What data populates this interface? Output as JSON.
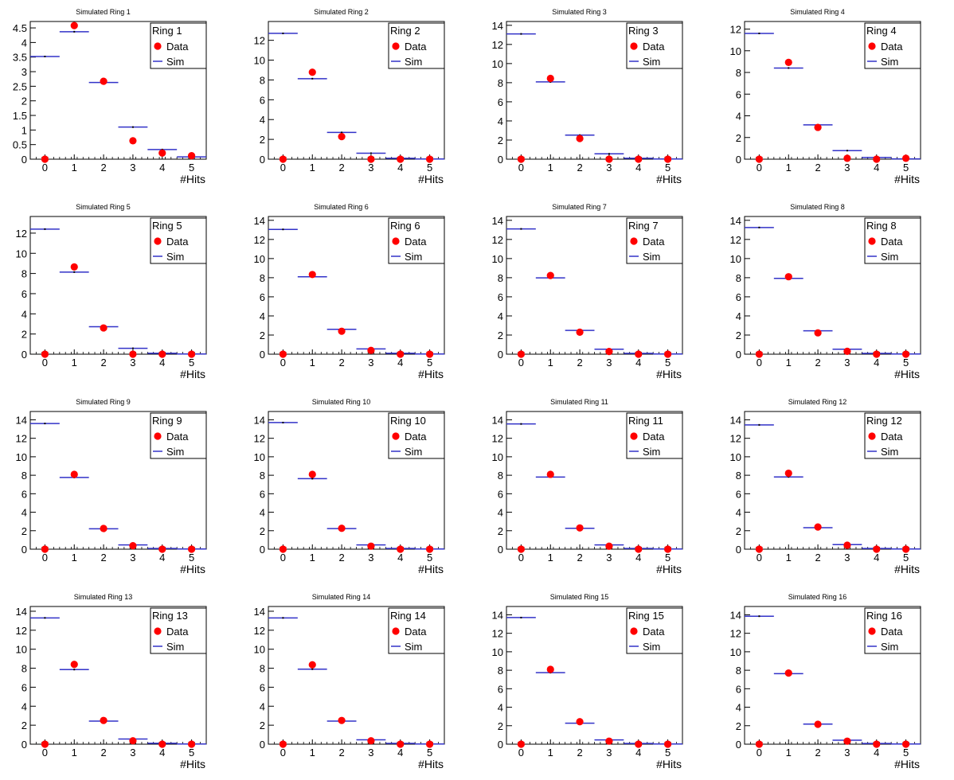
{
  "colors": {
    "data": "#ff0000",
    "sim": "#3232c8",
    "frame": "#000000",
    "background": "#ffffff"
  },
  "chart_data": [
    {
      "type": "scatter",
      "title": "Simulated Ring 1",
      "xlabel": "#Hits",
      "ylabel": "",
      "xlim": [
        -0.5,
        5.5
      ],
      "ylim": [
        0,
        4.72
      ],
      "yticks": [
        0,
        0.5,
        1,
        1.5,
        2,
        2.5,
        3,
        3.5,
        4,
        4.5
      ],
      "legend": {
        "title": "Ring 1",
        "position": "top-right"
      },
      "series": [
        {
          "name": "Data",
          "x": [
            0,
            1,
            2,
            3,
            4,
            5
          ],
          "values": [
            0,
            4.58,
            2.67,
            0.63,
            0.21,
            0.12
          ]
        },
        {
          "name": "Sim",
          "x": [
            0,
            1,
            2,
            3,
            4,
            5
          ],
          "values": [
            3.52,
            4.37,
            2.63,
            1.1,
            0.33,
            0.08
          ]
        }
      ]
    },
    {
      "type": "scatter",
      "title": "Simulated Ring 2",
      "xlabel": "#Hits",
      "ylabel": "",
      "xlim": [
        -0.5,
        5.5
      ],
      "ylim": [
        0,
        13.9
      ],
      "yticks": [
        0,
        2,
        4,
        6,
        8,
        10,
        12
      ],
      "legend": {
        "title": "Ring 2",
        "position": "top-right"
      },
      "series": [
        {
          "name": "Data",
          "x": [
            0,
            1,
            2,
            3,
            4,
            5
          ],
          "values": [
            0,
            8.78,
            2.28,
            0,
            0,
            0
          ]
        },
        {
          "name": "Sim",
          "x": [
            0,
            1,
            2,
            3,
            4,
            5
          ],
          "values": [
            12.7,
            8.13,
            2.7,
            0.6,
            0.09,
            0.02
          ]
        }
      ]
    },
    {
      "type": "scatter",
      "title": "Simulated Ring 3",
      "xlabel": "#Hits",
      "ylabel": "",
      "xlim": [
        -0.5,
        5.5
      ],
      "ylim": [
        0,
        14.4
      ],
      "yticks": [
        0,
        2,
        4,
        6,
        8,
        10,
        12,
        14
      ],
      "legend": {
        "title": "Ring 3",
        "position": "top-right"
      },
      "series": [
        {
          "name": "Data",
          "x": [
            0,
            1,
            2,
            3,
            4,
            5
          ],
          "values": [
            0,
            8.45,
            2.16,
            0,
            0,
            0
          ]
        },
        {
          "name": "Sim",
          "x": [
            0,
            1,
            2,
            3,
            4,
            5
          ],
          "values": [
            13.1,
            8.08,
            2.52,
            0.56,
            0.09,
            0.02
          ]
        }
      ]
    },
    {
      "type": "scatter",
      "title": "Simulated Ring 4",
      "xlabel": "#Hits",
      "ylabel": "",
      "xlim": [
        -0.5,
        5.5
      ],
      "ylim": [
        0,
        12.7
      ],
      "yticks": [
        0,
        2,
        4,
        6,
        8,
        10,
        12
      ],
      "legend": {
        "title": "Ring 4",
        "position": "top-right"
      },
      "series": [
        {
          "name": "Data",
          "x": [
            0,
            1,
            2,
            3,
            4,
            5
          ],
          "values": [
            0,
            8.93,
            2.93,
            0.08,
            0,
            0.08
          ]
        },
        {
          "name": "Sim",
          "x": [
            0,
            1,
            2,
            3,
            4,
            5
          ],
          "values": [
            11.6,
            8.41,
            3.17,
            0.79,
            0.16,
            0.03
          ]
        }
      ]
    },
    {
      "type": "scatter",
      "title": "Simulated Ring 5",
      "xlabel": "#Hits",
      "ylabel": "",
      "xlim": [
        -0.5,
        5.5
      ],
      "ylim": [
        0,
        13.65
      ],
      "yticks": [
        0,
        2,
        4,
        6,
        8,
        10,
        12
      ],
      "legend": {
        "title": "Ring 5",
        "position": "top-right"
      },
      "series": [
        {
          "name": "Data",
          "x": [
            0,
            1,
            2,
            3,
            4,
            5
          ],
          "values": [
            0,
            8.65,
            2.6,
            0,
            0,
            0
          ]
        },
        {
          "name": "Sim",
          "x": [
            0,
            1,
            2,
            3,
            4,
            5
          ],
          "values": [
            12.4,
            8.14,
            2.72,
            0.58,
            0.09,
            0.02
          ]
        }
      ]
    },
    {
      "type": "scatter",
      "title": "Simulated Ring 6",
      "xlabel": "#Hits",
      "ylabel": "",
      "xlim": [
        -0.5,
        5.5
      ],
      "ylim": [
        0,
        14.4
      ],
      "yticks": [
        0,
        2,
        4,
        6,
        8,
        10,
        12,
        14
      ],
      "legend": {
        "title": "Ring 6",
        "position": "top-right"
      },
      "series": [
        {
          "name": "Data",
          "x": [
            0,
            1,
            2,
            3,
            4,
            5
          ],
          "values": [
            0,
            8.33,
            2.4,
            0.4,
            0,
            0
          ]
        },
        {
          "name": "Sim",
          "x": [
            0,
            1,
            2,
            3,
            4,
            5
          ],
          "values": [
            13.05,
            8.1,
            2.6,
            0.55,
            0.09,
            0.02
          ]
        }
      ]
    },
    {
      "type": "scatter",
      "title": "Simulated Ring 7",
      "xlabel": "#Hits",
      "ylabel": "",
      "xlim": [
        -0.5,
        5.5
      ],
      "ylim": [
        0,
        14.4
      ],
      "yticks": [
        0,
        2,
        4,
        6,
        8,
        10,
        12,
        14
      ],
      "legend": {
        "title": "Ring 7",
        "position": "top-right"
      },
      "series": [
        {
          "name": "Data",
          "x": [
            0,
            1,
            2,
            3,
            4,
            5
          ],
          "values": [
            0,
            8.23,
            2.3,
            0.28,
            0,
            0
          ]
        },
        {
          "name": "Sim",
          "x": [
            0,
            1,
            2,
            3,
            4,
            5
          ],
          "values": [
            13.1,
            7.98,
            2.49,
            0.52,
            0.08,
            0.02
          ]
        }
      ]
    },
    {
      "type": "scatter",
      "title": "Simulated Ring 8",
      "xlabel": "#Hits",
      "ylabel": "",
      "xlim": [
        -0.5,
        5.5
      ],
      "ylim": [
        0,
        14.4
      ],
      "yticks": [
        0,
        2,
        4,
        6,
        8,
        10,
        12,
        14
      ],
      "legend": {
        "title": "Ring 8",
        "position": "top-right"
      },
      "series": [
        {
          "name": "Data",
          "x": [
            0,
            1,
            2,
            3,
            4,
            5
          ],
          "values": [
            0,
            8.1,
            2.23,
            0.3,
            0,
            0
          ]
        },
        {
          "name": "Sim",
          "x": [
            0,
            1,
            2,
            3,
            4,
            5
          ],
          "values": [
            13.25,
            7.93,
            2.45,
            0.52,
            0.08,
            0.02
          ]
        }
      ]
    },
    {
      "type": "scatter",
      "title": "Simulated Ring 9",
      "xlabel": "#Hits",
      "ylabel": "",
      "xlim": [
        -0.5,
        5.5
      ],
      "ylim": [
        0,
        14.9
      ],
      "yticks": [
        0,
        2,
        4,
        6,
        8,
        10,
        12,
        14
      ],
      "legend": {
        "title": "Ring 9",
        "position": "top-right"
      },
      "series": [
        {
          "name": "Data",
          "x": [
            0,
            1,
            2,
            3,
            4,
            5
          ],
          "values": [
            0,
            8.1,
            2.24,
            0.38,
            0,
            0
          ]
        },
        {
          "name": "Sim",
          "x": [
            0,
            1,
            2,
            3,
            4,
            5
          ],
          "values": [
            13.6,
            7.76,
            2.21,
            0.46,
            0.08,
            0.02
          ]
        }
      ]
    },
    {
      "type": "scatter",
      "title": "Simulated Ring 10",
      "xlabel": "#Hits",
      "ylabel": "",
      "xlim": [
        -0.5,
        5.5
      ],
      "ylim": [
        0,
        14.9
      ],
      "yticks": [
        0,
        2,
        4,
        6,
        8,
        10,
        12,
        14
      ],
      "legend": {
        "title": "Ring 10",
        "position": "top-right"
      },
      "series": [
        {
          "name": "Data",
          "x": [
            0,
            1,
            2,
            3,
            4,
            5
          ],
          "values": [
            0,
            8.1,
            2.26,
            0.33,
            0,
            0
          ]
        },
        {
          "name": "Sim",
          "x": [
            0,
            1,
            2,
            3,
            4,
            5
          ],
          "values": [
            13.7,
            7.63,
            2.23,
            0.46,
            0.08,
            0.02
          ]
        }
      ]
    },
    {
      "type": "scatter",
      "title": "Simulated Ring 11",
      "xlabel": "#Hits",
      "ylabel": "",
      "xlim": [
        -0.5,
        5.5
      ],
      "ylim": [
        0,
        14.9
      ],
      "yticks": [
        0,
        2,
        4,
        6,
        8,
        10,
        12,
        14
      ],
      "legend": {
        "title": "Ring 11",
        "position": "top-right"
      },
      "series": [
        {
          "name": "Data",
          "x": [
            0,
            1,
            2,
            3,
            4,
            5
          ],
          "values": [
            0,
            8.1,
            2.3,
            0.32,
            0,
            0
          ]
        },
        {
          "name": "Sim",
          "x": [
            0,
            1,
            2,
            3,
            4,
            5
          ],
          "values": [
            13.55,
            7.8,
            2.26,
            0.46,
            0.08,
            0.02
          ]
        }
      ]
    },
    {
      "type": "scatter",
      "title": "Simulated Ring 12",
      "xlabel": "#Hits",
      "ylabel": "",
      "xlim": [
        -0.5,
        5.5
      ],
      "ylim": [
        0,
        14.9
      ],
      "yticks": [
        0,
        2,
        4,
        6,
        8,
        10,
        12,
        14
      ],
      "legend": {
        "title": "Ring 12",
        "position": "top-right"
      },
      "series": [
        {
          "name": "Data",
          "x": [
            0,
            1,
            2,
            3,
            4,
            5
          ],
          "values": [
            0,
            8.22,
            2.4,
            0.43,
            0,
            0
          ]
        },
        {
          "name": "Sim",
          "x": [
            0,
            1,
            2,
            3,
            4,
            5
          ],
          "values": [
            13.45,
            7.82,
            2.33,
            0.49,
            0.08,
            0.02
          ]
        }
      ]
    },
    {
      "type": "scatter",
      "title": "Simulated Ring 13",
      "xlabel": "#Hits",
      "ylabel": "",
      "xlim": [
        -0.5,
        5.5
      ],
      "ylim": [
        0,
        14.5
      ],
      "yticks": [
        0,
        2,
        4,
        6,
        8,
        10,
        12,
        14
      ],
      "legend": {
        "title": "Ring 13",
        "position": "top-right"
      },
      "series": [
        {
          "name": "Data",
          "x": [
            0,
            1,
            2,
            3,
            4,
            5
          ],
          "values": [
            0,
            8.4,
            2.5,
            0.36,
            0,
            0
          ]
        },
        {
          "name": "Sim",
          "x": [
            0,
            1,
            2,
            3,
            4,
            5
          ],
          "values": [
            13.3,
            7.86,
            2.43,
            0.55,
            0.09,
            0.02
          ]
        }
      ]
    },
    {
      "type": "scatter",
      "title": "Simulated Ring 14",
      "xlabel": "#Hits",
      "ylabel": "",
      "xlim": [
        -0.5,
        5.5
      ],
      "ylim": [
        0,
        14.5
      ],
      "yticks": [
        0,
        2,
        4,
        6,
        8,
        10,
        12,
        14
      ],
      "legend": {
        "title": "Ring 14",
        "position": "top-right"
      },
      "series": [
        {
          "name": "Data",
          "x": [
            0,
            1,
            2,
            3,
            4,
            5
          ],
          "values": [
            0,
            8.36,
            2.5,
            0.36,
            0,
            0
          ]
        },
        {
          "name": "Sim",
          "x": [
            0,
            1,
            2,
            3,
            4,
            5
          ],
          "values": [
            13.3,
            7.9,
            2.43,
            0.46,
            0.08,
            0.02
          ]
        }
      ]
    },
    {
      "type": "scatter",
      "title": "Simulated Ring 15",
      "xlabel": "#Hits",
      "ylabel": "",
      "xlim": [
        -0.5,
        5.5
      ],
      "ylim": [
        0,
        14.9
      ],
      "yticks": [
        0,
        2,
        4,
        6,
        8,
        10,
        12,
        14
      ],
      "legend": {
        "title": "Ring 15",
        "position": "top-right"
      },
      "series": [
        {
          "name": "Data",
          "x": [
            0,
            1,
            2,
            3,
            4,
            5
          ],
          "values": [
            0,
            8.1,
            2.43,
            0.33,
            0,
            0
          ]
        },
        {
          "name": "Sim",
          "x": [
            0,
            1,
            2,
            3,
            4,
            5
          ],
          "values": [
            13.7,
            7.74,
            2.27,
            0.46,
            0.08,
            0.02
          ]
        }
      ]
    },
    {
      "type": "scatter",
      "title": "Simulated Ring 16",
      "xlabel": "#Hits",
      "ylabel": "",
      "xlim": [
        -0.5,
        5.5
      ],
      "ylim": [
        0,
        14.9
      ],
      "yticks": [
        0,
        2,
        4,
        6,
        8,
        10,
        12,
        14
      ],
      "legend": {
        "title": "Ring 16",
        "position": "top-right"
      },
      "series": [
        {
          "name": "Data",
          "x": [
            0,
            1,
            2,
            3,
            4,
            5
          ],
          "values": [
            0,
            7.7,
            2.15,
            0.33,
            0,
            0
          ]
        },
        {
          "name": "Sim",
          "x": [
            0,
            1,
            2,
            3,
            4,
            5
          ],
          "values": [
            13.85,
            7.63,
            2.17,
            0.43,
            0.07,
            0.02
          ]
        }
      ]
    }
  ]
}
